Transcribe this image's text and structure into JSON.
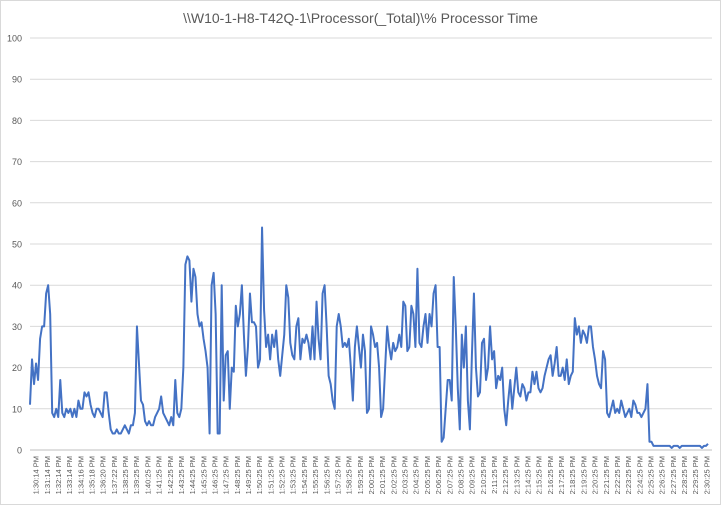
{
  "chart_data": {
    "type": "line",
    "title": "\\\\W10-1-H8-T42Q-1\\Processor(_Total)\\% Processor Time",
    "xlabel": "",
    "ylabel": "",
    "ylim": [
      0,
      100
    ],
    "yticks": [
      0,
      10,
      20,
      30,
      40,
      50,
      60,
      70,
      80,
      90,
      100
    ],
    "grid": "horizontal",
    "legend": "none",
    "series_color": "#4472c4",
    "x_tick_labels": [
      "1:30:14 PM",
      "1:31:14 PM",
      "1:32:14 PM",
      "1:33:14 PM",
      "1:34:16 PM",
      "1:35:18 PM",
      "1:36:20 PM",
      "1:37:22 PM",
      "1:38:25 PM",
      "1:39:25 PM",
      "1:40:25 PM",
      "1:41:25 PM",
      "1:42:25 PM",
      "1:43:25 PM",
      "1:44:25 PM",
      "1:45:25 PM",
      "1:46:25 PM",
      "1:47:25 PM",
      "1:48:25 PM",
      "1:49:25 PM",
      "1:50:25 PM",
      "1:51:25 PM",
      "1:52:25 PM",
      "1:53:25 PM",
      "1:54:25 PM",
      "1:55:25 PM",
      "1:56:25 PM",
      "1:57:25 PM",
      "1:58:25 PM",
      "1:59:25 PM",
      "2:00:25 PM",
      "2:01:25 PM",
      "2:02:25 PM",
      "2:03:25 PM",
      "2:04:25 PM",
      "2:05:25 PM",
      "2:06:25 PM",
      "2:07:25 PM",
      "2:08:25 PM",
      "2:09:25 PM",
      "2:10:25 PM",
      "2:11:25 PM",
      "2:12:25 PM",
      "2:13:25 PM",
      "2:14:25 PM",
      "2:15:25 PM",
      "2:16:25 PM",
      "2:17:25 PM",
      "2:18:25 PM",
      "2:19:25 PM",
      "2:20:25 PM",
      "2:21:25 PM",
      "2:22:25 PM",
      "2:23:25 PM",
      "2:24:25 PM",
      "2:25:25 PM",
      "2:26:25 PM",
      "2:27:25 PM",
      "2:28:25 PM",
      "2:29:25 PM",
      "2:30:25 PM"
    ],
    "values": [
      11,
      22,
      16,
      21,
      17,
      27,
      30,
      30,
      38,
      40,
      33,
      9,
      8,
      10,
      8,
      17,
      9,
      8,
      10,
      9,
      10,
      8,
      10,
      8,
      12,
      10,
      10,
      14,
      13,
      14,
      11,
      9,
      8,
      10,
      10,
      9,
      8,
      14,
      14,
      9,
      5,
      4,
      4,
      5,
      4,
      4,
      5,
      6,
      5,
      4,
      6,
      6,
      9,
      30,
      21,
      12,
      11,
      7,
      6,
      7,
      6,
      6,
      8,
      9,
      10,
      13,
      9,
      8,
      7,
      6,
      8,
      6,
      17,
      9,
      8,
      10,
      20,
      45,
      47,
      46,
      36,
      44,
      42,
      33,
      30,
      31,
      27,
      24,
      20,
      4,
      40,
      43,
      33,
      4,
      4,
      40,
      12,
      23,
      24,
      10,
      20,
      19,
      35,
      30,
      33,
      40,
      28,
      18,
      25,
      38,
      31,
      31,
      30,
      20,
      22,
      54,
      34,
      25,
      28,
      22,
      28,
      25,
      29,
      22,
      18,
      23,
      28,
      40,
      37,
      26,
      23,
      22,
      30,
      32,
      22,
      27,
      26,
      28,
      26,
      22,
      30,
      22,
      36,
      27,
      22,
      38,
      40,
      30,
      18,
      16,
      12,
      10,
      30,
      33,
      30,
      25,
      26,
      25,
      27,
      20,
      12,
      25,
      30,
      25,
      20,
      28,
      24,
      9,
      10,
      30,
      28,
      25,
      26,
      20,
      8,
      10,
      20,
      30,
      25,
      22,
      26,
      24,
      25,
      28,
      25,
      36,
      35,
      24,
      25,
      35,
      33,
      25,
      44,
      26,
      25,
      30,
      33,
      26,
      33,
      30,
      38,
      40,
      25,
      25,
      2,
      3,
      10,
      17,
      17,
      12,
      42,
      30,
      15,
      5,
      28,
      20,
      30,
      12,
      5,
      23,
      38,
      20,
      13,
      14,
      26,
      27,
      17,
      20,
      30,
      22,
      24,
      15,
      18,
      17,
      20,
      10,
      6,
      12,
      17,
      10,
      15,
      20,
      14,
      13,
      16,
      15,
      12,
      14,
      14,
      19,
      16,
      19,
      15,
      14,
      15,
      18,
      20,
      22,
      23,
      18,
      21,
      25,
      18,
      18,
      20,
      17,
      22,
      16,
      18,
      19,
      32,
      28,
      30,
      26,
      29,
      28,
      26,
      30,
      30,
      25,
      22,
      18,
      16,
      15,
      24,
      22,
      9,
      8,
      10,
      12,
      9,
      10,
      9,
      12,
      10,
      8,
      9,
      10,
      8,
      12,
      11,
      9,
      9,
      8,
      9,
      10,
      16,
      2,
      2,
      1,
      1,
      1,
      1,
      1,
      1,
      1,
      1,
      1,
      0.5,
      1,
      1,
      1,
      0.5,
      1,
      1,
      1,
      1,
      1,
      1,
      1,
      1,
      1,
      1,
      0.5,
      1,
      1,
      1.5
    ]
  }
}
